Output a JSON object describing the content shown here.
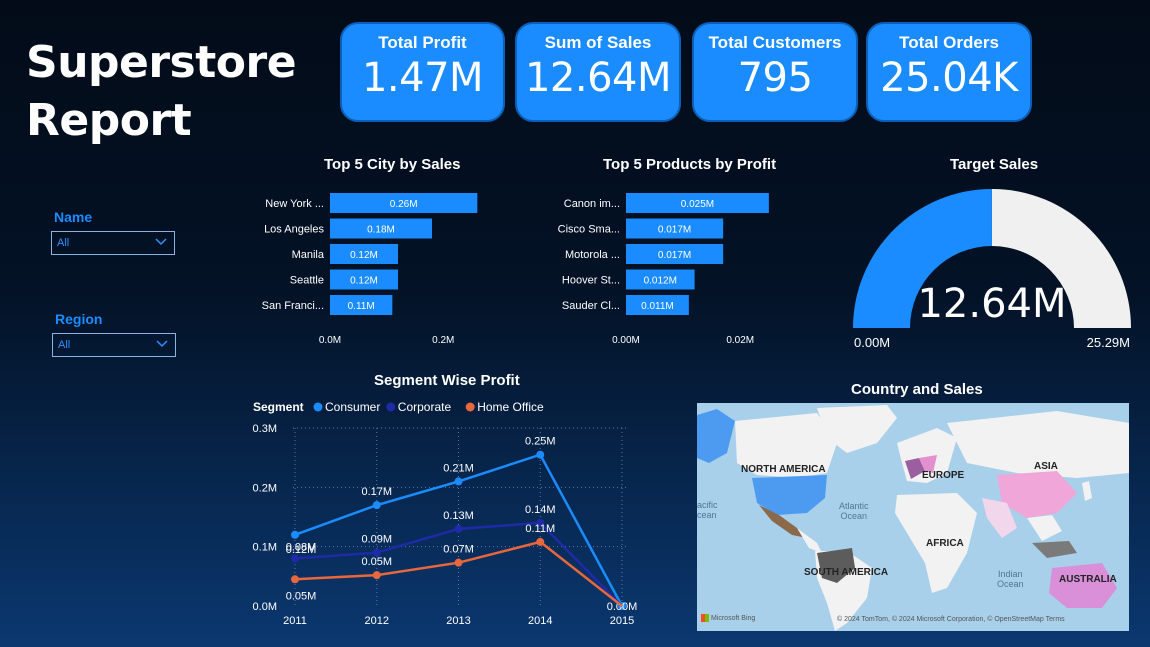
{
  "report_title_line1": "Superstore",
  "report_title_line2": "Report",
  "kpis": [
    {
      "label": "Total Profit",
      "value": "1.47M"
    },
    {
      "label": "Sum of Sales",
      "value": "12.64M"
    },
    {
      "label": "Total Customers",
      "value": "795"
    },
    {
      "label": "Total Orders",
      "value": "25.04K"
    }
  ],
  "slicers": {
    "name": {
      "label": "Name",
      "value": "All"
    },
    "region": {
      "label": "Region",
      "value": "All"
    }
  },
  "city_chart": {
    "title": "Top 5 City by Sales"
  },
  "product_chart": {
    "title": "Top 5 Products by Profit"
  },
  "gauge": {
    "title": "Target Sales",
    "value_label": "12.64M",
    "min_label": "0.00M",
    "max_label": "25.29M",
    "value": 12.64,
    "max": 25.29,
    "fill_color": "#1a8cff",
    "track_color": "#f0f0f0"
  },
  "segment_chart": {
    "title": "Segment Wise Profit",
    "legend_title": "Segment"
  },
  "map": {
    "title": "Country and Sales",
    "labels": {
      "north_america": "NORTH AMERICA",
      "europe": "EUROPE",
      "asia": "ASIA",
      "africa": "AFRICA",
      "south_america": "SOUTH AMERICA",
      "australia": "AUSTRALIA"
    },
    "oceans": {
      "atlantic": "Atlantic\nOcean",
      "indian": "Indian\nOcean",
      "pacific": "acific\ncean"
    },
    "bing_logo": "Microsoft Bing",
    "attribution": "© 2024 TomTom, © 2024 Microsoft Corporation, © OpenStreetMap  Terms"
  },
  "chart_data": [
    {
      "type": "bar",
      "orientation": "horizontal",
      "title": "Top 5 City by Sales",
      "categories": [
        "New York ...",
        "Los Angeles",
        "Manila",
        "Seattle",
        "San Franci..."
      ],
      "values": [
        0.26,
        0.18,
        0.12,
        0.12,
        0.11
      ],
      "data_labels": [
        "0.26M",
        "0.18M",
        "0.12M",
        "0.12M",
        "0.11M"
      ],
      "xticks": [
        "0.0M",
        "0.2M"
      ],
      "xlim": [
        0,
        0.42
      ],
      "color": "#1a8cff"
    },
    {
      "type": "bar",
      "orientation": "horizontal",
      "title": "Top 5 Products by Profit",
      "categories": [
        "Canon im...",
        "Cisco Sma...",
        "Motorola ...",
        "Hoover St...",
        "Sauder Cl..."
      ],
      "values": [
        0.025,
        0.017,
        0.017,
        0.012,
        0.011
      ],
      "data_labels": [
        "0.025M",
        "0.017M",
        "0.017M",
        "0.012M",
        "0.011M"
      ],
      "xticks": [
        "0.00M",
        "0.02M"
      ],
      "xlim": [
        0,
        0.042
      ],
      "color": "#1a8cff"
    },
    {
      "type": "line",
      "title": "Segment Wise Profit",
      "x": [
        "2011",
        "2012",
        "2013",
        "2014",
        "2015"
      ],
      "yticks": [
        "0.0M",
        "0.1M",
        "0.2M",
        "0.3M"
      ],
      "ylim": [
        0,
        0.3
      ],
      "legend_title": "Segment",
      "series": [
        {
          "name": "Consumer",
          "color": "#1a8cff",
          "values": [
            0.12,
            0.17,
            0.21,
            0.255,
            0.0
          ],
          "labels": [
            "0.12M",
            "0.17M",
            "0.21M",
            "0.25M",
            "0.00M"
          ]
        },
        {
          "name": "Corporate",
          "color": "#1f2aa8",
          "values": [
            0.08,
            0.09,
            0.13,
            0.14,
            0.0
          ],
          "labels": [
            "0.08M",
            "0.09M",
            "0.13M",
            "0.14M",
            ""
          ]
        },
        {
          "name": "Home Office",
          "color": "#e8673c",
          "values": [
            0.045,
            0.052,
            0.073,
            0.108,
            0.0
          ],
          "labels": [
            "0.05M",
            "0.05M",
            "0.07M",
            "0.11M",
            ""
          ]
        }
      ]
    }
  ]
}
